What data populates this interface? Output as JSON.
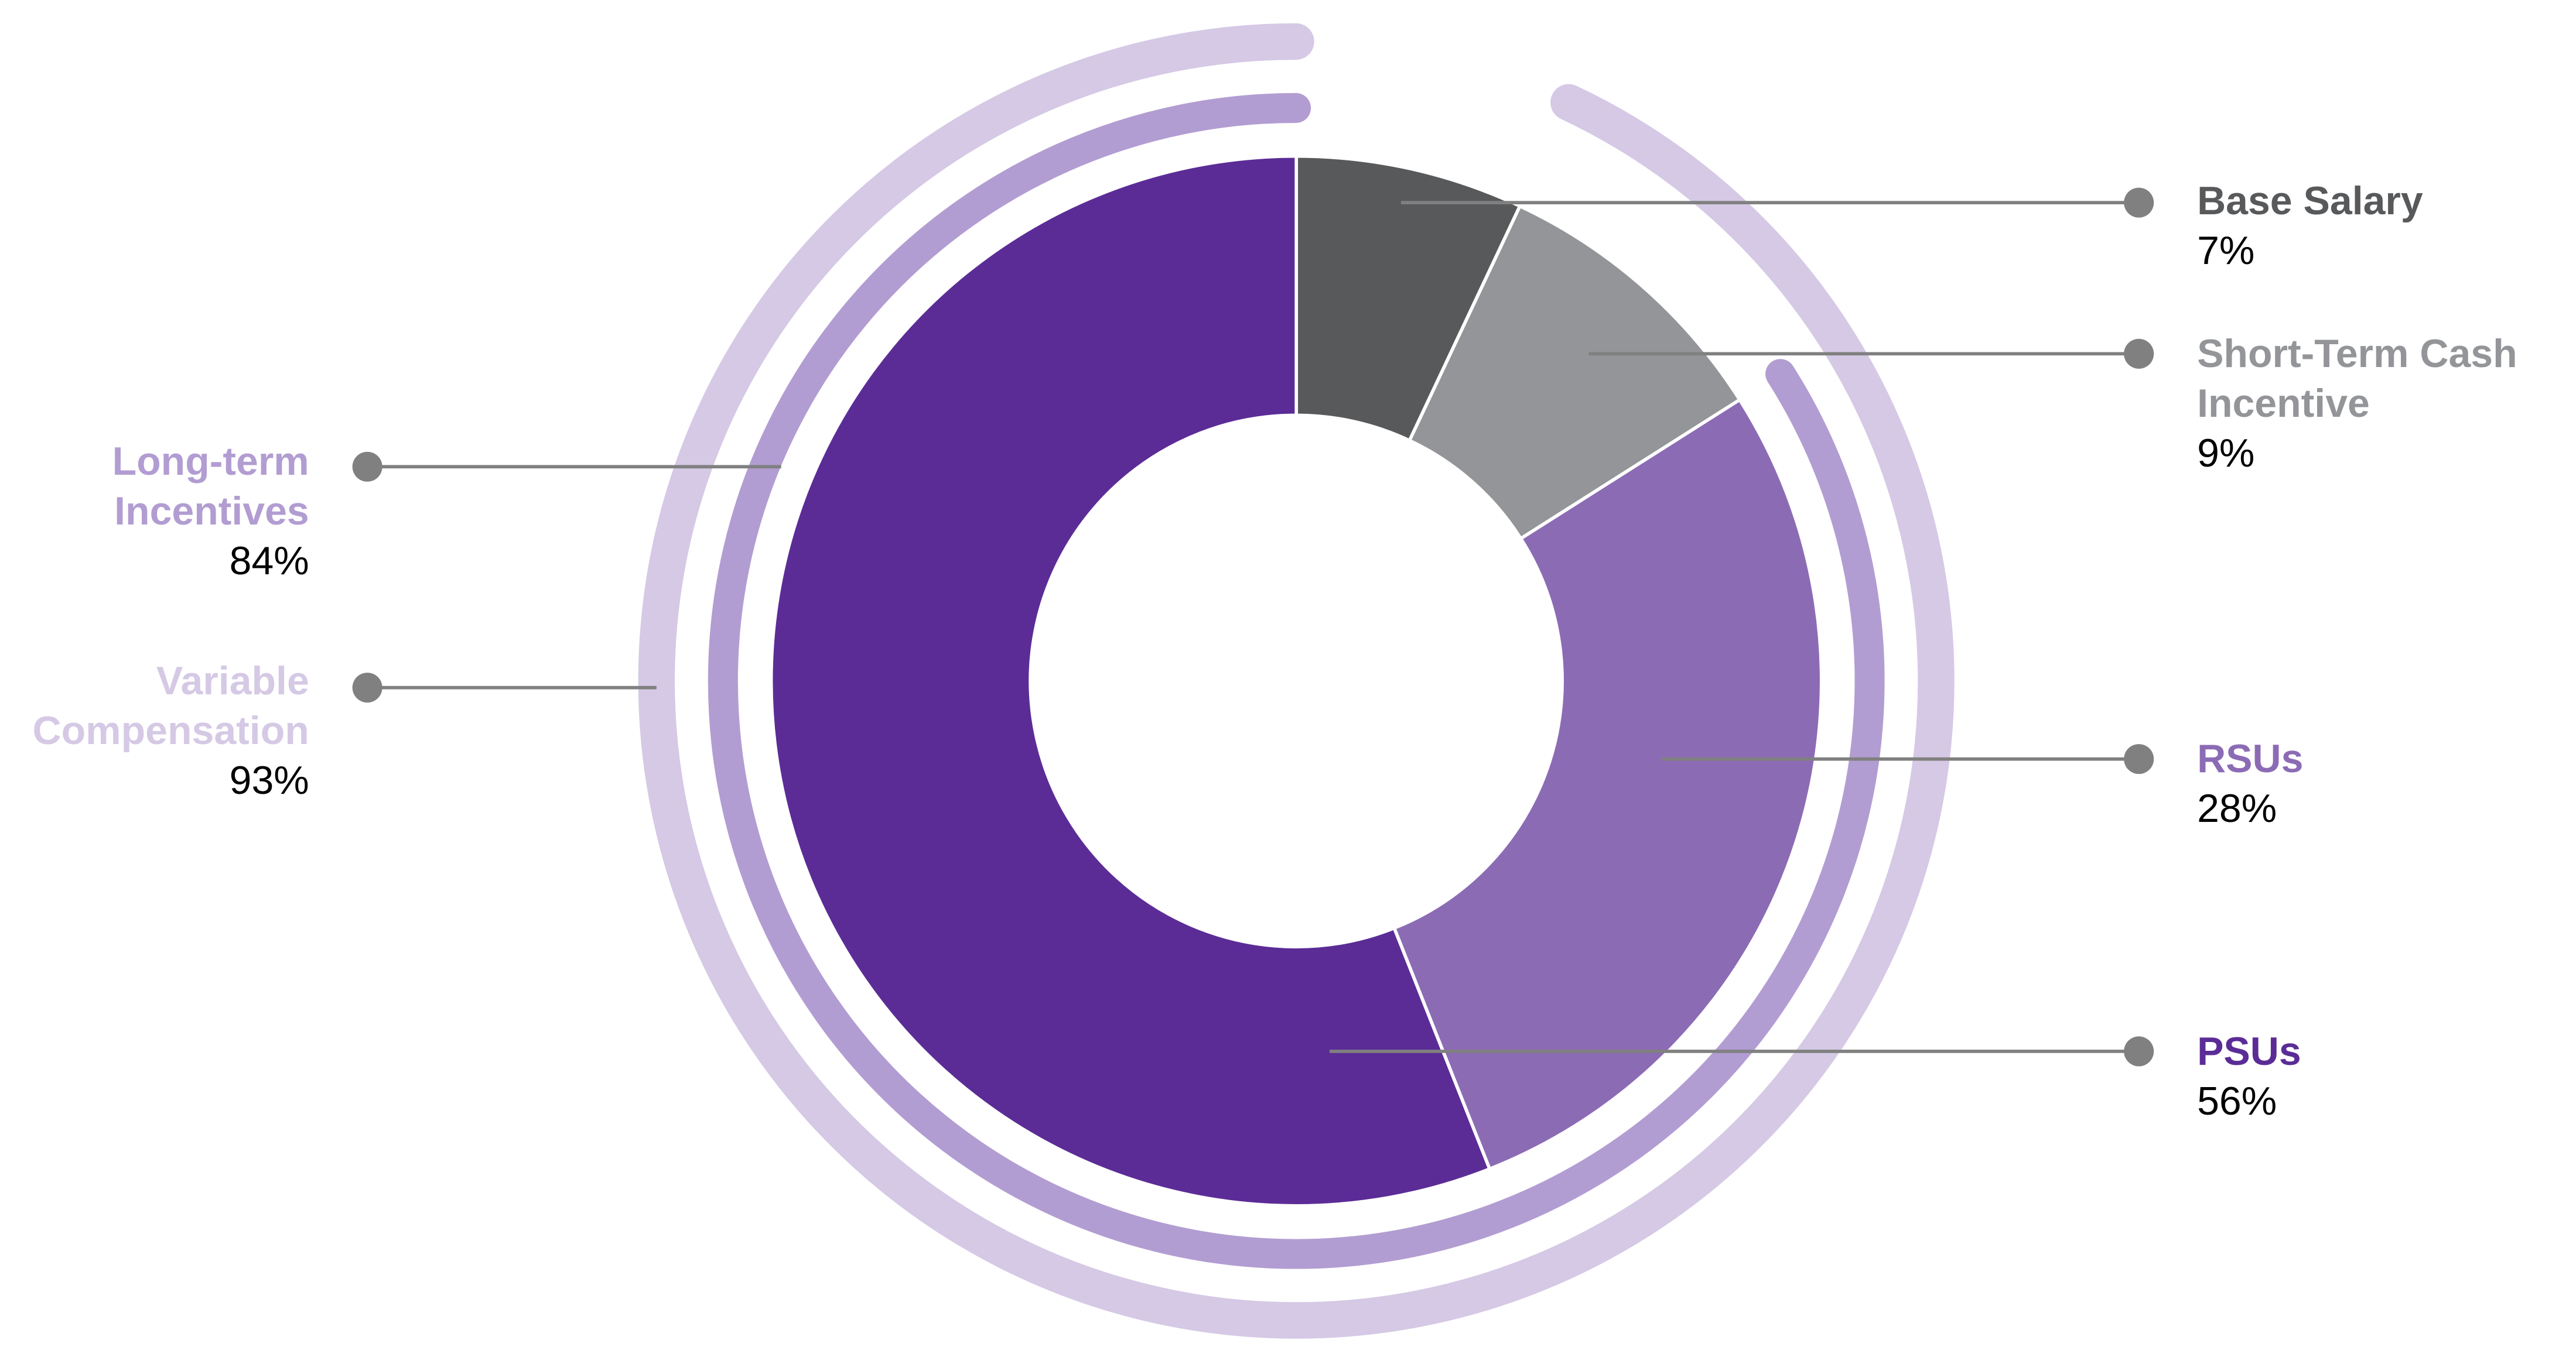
{
  "chart_data": {
    "type": "pie",
    "donut": true,
    "categories": [
      "Base Salary",
      "Short-Term Cash Incentive",
      "RSUs",
      "PSUs"
    ],
    "values": [
      7,
      9,
      28,
      56
    ],
    "value_labels": [
      "7%",
      "9%",
      "28%",
      "56%"
    ],
    "colors": [
      "#58595b",
      "#939598",
      "#8c6bb5",
      "#5b2c96"
    ],
    "rings": [
      {
        "name": "Long-term Incentives",
        "value": 84,
        "value_label": "84%",
        "color": "#b29dd2"
      },
      {
        "name": "Variable Compensation",
        "value": 93,
        "value_label": "93%",
        "color": "#d5c9e5"
      }
    ]
  }
}
